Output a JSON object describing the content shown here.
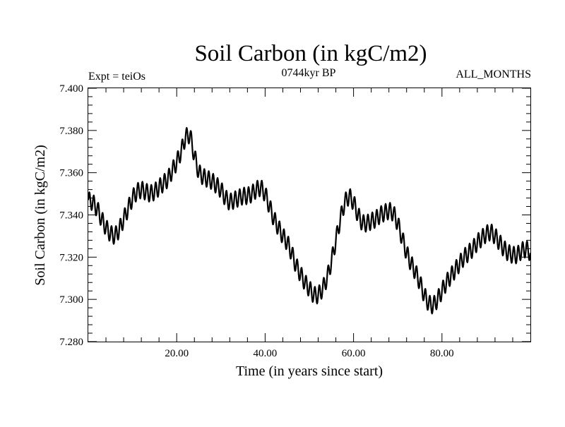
{
  "chart_data": {
    "type": "line",
    "title": "Soil Carbon (in kgC/m2)",
    "subtitle_left": "Expt = teiOs",
    "subtitle_center": "0744kyr BP",
    "subtitle_right": "ALL_MONTHS",
    "xlabel": "Time (in years since start)",
    "ylabel": "Soil Carbon (in kgC/m2)",
    "xlim": [
      0,
      100
    ],
    "ylim": [
      7.28,
      7.4
    ],
    "xticks": [
      20,
      40,
      60,
      80
    ],
    "xtick_labels": [
      "20.00",
      "40.00",
      "60.00",
      "80.00"
    ],
    "yticks": [
      7.28,
      7.3,
      7.32,
      7.34,
      7.36,
      7.38,
      7.4
    ],
    "ytick_labels": [
      "7.280",
      "7.300",
      "7.320",
      "7.340",
      "7.360",
      "7.380",
      "7.400"
    ],
    "annual_oscillation_amplitude": 0.004,
    "series": [
      {
        "name": "Soil Carbon",
        "x": [
          0,
          1,
          2,
          3,
          4,
          5,
          6,
          7,
          8,
          9,
          10,
          11,
          12,
          13,
          14,
          15,
          16,
          17,
          18,
          19,
          20,
          21,
          22,
          23,
          24,
          25,
          26,
          27,
          28,
          29,
          30,
          31,
          32,
          33,
          34,
          35,
          36,
          37,
          38,
          39,
          40,
          41,
          42,
          43,
          44,
          45,
          46,
          47,
          48,
          49,
          50,
          51,
          52,
          53,
          54,
          55,
          56,
          57,
          58,
          59,
          60,
          61,
          62,
          63,
          64,
          65,
          66,
          67,
          68,
          69,
          70,
          71,
          72,
          73,
          74,
          75,
          76,
          77,
          78,
          79,
          80,
          81,
          82,
          83,
          84,
          85,
          86,
          87,
          88,
          89,
          90,
          91,
          92,
          93,
          94,
          95,
          96,
          97,
          98,
          99,
          100
        ],
        "y": [
          7.347,
          7.346,
          7.343,
          7.338,
          7.334,
          7.331,
          7.33,
          7.333,
          7.338,
          7.343,
          7.348,
          7.351,
          7.352,
          7.351,
          7.35,
          7.351,
          7.353,
          7.355,
          7.357,
          7.361,
          7.365,
          7.37,
          7.377,
          7.378,
          7.368,
          7.36,
          7.358,
          7.357,
          7.356,
          7.354,
          7.352,
          7.348,
          7.346,
          7.347,
          7.348,
          7.349,
          7.349,
          7.35,
          7.352,
          7.353,
          7.35,
          7.344,
          7.338,
          7.334,
          7.33,
          7.327,
          7.322,
          7.316,
          7.312,
          7.308,
          7.305,
          7.302,
          7.302,
          7.305,
          7.31,
          7.318,
          7.328,
          7.338,
          7.346,
          7.349,
          7.346,
          7.34,
          7.336,
          7.336,
          7.337,
          7.338,
          7.34,
          7.341,
          7.342,
          7.341,
          7.336,
          7.329,
          7.322,
          7.317,
          7.313,
          7.308,
          7.302,
          7.298,
          7.297,
          7.3,
          7.304,
          7.308,
          7.311,
          7.314,
          7.317,
          7.32,
          7.322,
          7.324,
          7.327,
          7.329,
          7.331,
          7.332,
          7.33,
          7.327,
          7.324,
          7.322,
          7.321,
          7.321,
          7.323,
          7.324,
          7.322
        ]
      }
    ]
  }
}
